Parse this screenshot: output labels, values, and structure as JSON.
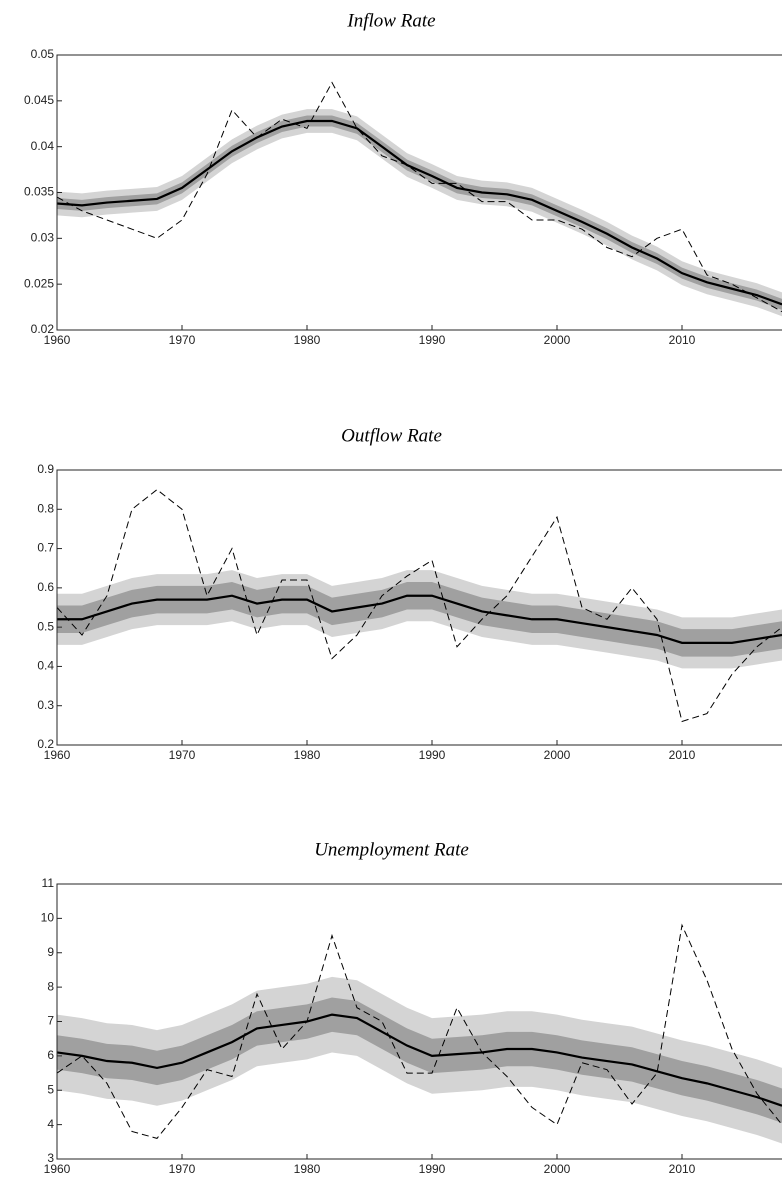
{
  "chart_data": [
    {
      "type": "line",
      "title": "Inflow Rate",
      "x": [
        1960,
        1962,
        1964,
        1966,
        1968,
        1970,
        1972,
        1974,
        1976,
        1978,
        1980,
        1982,
        1984,
        1986,
        1988,
        1990,
        1992,
        1994,
        1996,
        1998,
        2000,
        2002,
        2004,
        2006,
        2008,
        2010,
        2012,
        2014,
        2016,
        2018
      ],
      "bands": [
        {
          "color": "#d4d4d4",
          "lower": [
            0.0325,
            0.0323,
            0.0326,
            0.0328,
            0.033,
            0.0342,
            0.0362,
            0.0382,
            0.0397,
            0.0409,
            0.0415,
            0.0415,
            0.0407,
            0.0387,
            0.0367,
            0.0355,
            0.0342,
            0.0337,
            0.0335,
            0.0329,
            0.0317,
            0.0305,
            0.0292,
            0.0277,
            0.0265,
            0.0249,
            0.0239,
            0.0232,
            0.0225,
            0.0215
          ],
          "upper": [
            0.0351,
            0.0349,
            0.0352,
            0.0354,
            0.0356,
            0.0368,
            0.0388,
            0.0408,
            0.0423,
            0.0435,
            0.0441,
            0.0441,
            0.0433,
            0.0413,
            0.0393,
            0.0381,
            0.0368,
            0.0363,
            0.0361,
            0.0355,
            0.0343,
            0.0331,
            0.0318,
            0.0303,
            0.0291,
            0.0275,
            0.0265,
            0.0258,
            0.0251,
            0.0241
          ]
        },
        {
          "color": "#a0a0a0",
          "lower": [
            0.0332,
            0.033,
            0.0333,
            0.0335,
            0.0337,
            0.0349,
            0.0369,
            0.0389,
            0.0404,
            0.0416,
            0.0422,
            0.0422,
            0.0414,
            0.0394,
            0.0374,
            0.0362,
            0.0349,
            0.0344,
            0.0342,
            0.0336,
            0.0324,
            0.0312,
            0.0299,
            0.0284,
            0.0272,
            0.0256,
            0.0246,
            0.0239,
            0.0232,
            0.0222
          ],
          "upper": [
            0.0344,
            0.0342,
            0.0345,
            0.0347,
            0.0349,
            0.0361,
            0.0381,
            0.0401,
            0.0416,
            0.0428,
            0.0434,
            0.0434,
            0.0426,
            0.0406,
            0.0386,
            0.0374,
            0.0361,
            0.0356,
            0.0354,
            0.0348,
            0.0336,
            0.0324,
            0.0311,
            0.0296,
            0.0284,
            0.0268,
            0.0258,
            0.0251,
            0.0244,
            0.0234
          ]
        }
      ],
      "series": [
        {
          "color": "#000000",
          "style": "solid",
          "values": [
            0.0338,
            0.0336,
            0.0339,
            0.0341,
            0.0343,
            0.0355,
            0.0375,
            0.0395,
            0.041,
            0.0422,
            0.0428,
            0.0428,
            0.042,
            0.04,
            0.038,
            0.0368,
            0.0355,
            0.035,
            0.0348,
            0.0342,
            0.033,
            0.0318,
            0.0305,
            0.029,
            0.0278,
            0.0262,
            0.0252,
            0.0245,
            0.0238,
            0.0228
          ]
        },
        {
          "color": "#000000",
          "style": "dashed",
          "values": [
            0.0345,
            0.033,
            0.032,
            0.031,
            0.03,
            0.032,
            0.037,
            0.044,
            0.041,
            0.043,
            0.042,
            0.047,
            0.042,
            0.039,
            0.038,
            0.036,
            0.036,
            0.034,
            0.034,
            0.032,
            0.032,
            0.031,
            0.029,
            0.028,
            0.03,
            0.031,
            0.026,
            0.025,
            0.0235,
            0.022
          ]
        }
      ],
      "xlim": [
        1960,
        2018
      ],
      "xticks": [
        1960,
        1970,
        1980,
        1990,
        2000,
        2010
      ],
      "ylim": [
        0.02,
        0.05
      ],
      "yticks": [
        0.02,
        0.025,
        0.03,
        0.035,
        0.04,
        0.045,
        0.05
      ]
    },
    {
      "type": "line",
      "title": "Outflow Rate",
      "x": [
        1960,
        1962,
        1964,
        1966,
        1968,
        1970,
        1972,
        1974,
        1976,
        1978,
        1980,
        1982,
        1984,
        1986,
        1988,
        1990,
        1992,
        1994,
        1996,
        1998,
        2000,
        2002,
        2004,
        2006,
        2008,
        2010,
        2012,
        2014,
        2016,
        2018
      ],
      "bands": [
        {
          "color": "#d4d4d4",
          "lower": [
            0.455,
            0.455,
            0.475,
            0.495,
            0.505,
            0.505,
            0.505,
            0.515,
            0.495,
            0.505,
            0.505,
            0.475,
            0.485,
            0.495,
            0.515,
            0.515,
            0.495,
            0.475,
            0.465,
            0.455,
            0.455,
            0.445,
            0.435,
            0.425,
            0.415,
            0.395,
            0.395,
            0.395,
            0.405,
            0.415
          ],
          "upper": [
            0.585,
            0.585,
            0.605,
            0.625,
            0.635,
            0.635,
            0.635,
            0.645,
            0.625,
            0.635,
            0.635,
            0.605,
            0.615,
            0.625,
            0.645,
            0.645,
            0.625,
            0.605,
            0.595,
            0.585,
            0.585,
            0.575,
            0.565,
            0.555,
            0.545,
            0.525,
            0.525,
            0.525,
            0.535,
            0.545
          ]
        },
        {
          "color": "#a0a0a0",
          "lower": [
            0.485,
            0.485,
            0.505,
            0.525,
            0.535,
            0.535,
            0.535,
            0.545,
            0.525,
            0.535,
            0.535,
            0.505,
            0.515,
            0.525,
            0.545,
            0.545,
            0.525,
            0.505,
            0.495,
            0.485,
            0.485,
            0.475,
            0.465,
            0.455,
            0.445,
            0.425,
            0.425,
            0.425,
            0.435,
            0.445
          ],
          "upper": [
            0.555,
            0.555,
            0.575,
            0.595,
            0.605,
            0.605,
            0.605,
            0.615,
            0.595,
            0.605,
            0.605,
            0.575,
            0.585,
            0.595,
            0.615,
            0.615,
            0.595,
            0.575,
            0.565,
            0.555,
            0.555,
            0.545,
            0.535,
            0.525,
            0.515,
            0.495,
            0.495,
            0.495,
            0.505,
            0.515
          ]
        }
      ],
      "series": [
        {
          "color": "#000000",
          "style": "solid",
          "values": [
            0.52,
            0.52,
            0.54,
            0.56,
            0.57,
            0.57,
            0.57,
            0.58,
            0.56,
            0.57,
            0.57,
            0.54,
            0.55,
            0.56,
            0.58,
            0.58,
            0.56,
            0.54,
            0.53,
            0.52,
            0.52,
            0.51,
            0.5,
            0.49,
            0.48,
            0.46,
            0.46,
            0.46,
            0.47,
            0.48
          ]
        },
        {
          "color": "#000000",
          "style": "dashed",
          "values": [
            0.55,
            0.48,
            0.58,
            0.8,
            0.85,
            0.8,
            0.58,
            0.7,
            0.48,
            0.62,
            0.62,
            0.42,
            0.48,
            0.58,
            0.63,
            0.67,
            0.45,
            0.52,
            0.58,
            0.68,
            0.78,
            0.55,
            0.52,
            0.6,
            0.52,
            0.26,
            0.28,
            0.38,
            0.45,
            0.5
          ]
        }
      ],
      "xlim": [
        1960,
        2018
      ],
      "xticks": [
        1960,
        1970,
        1980,
        1990,
        2000,
        2010
      ],
      "ylim": [
        0.2,
        0.9
      ],
      "yticks": [
        0.2,
        0.3,
        0.4,
        0.5,
        0.6,
        0.7,
        0.8,
        0.9
      ]
    },
    {
      "type": "line",
      "title": "Unemployment Rate",
      "x": [
        1960,
        1962,
        1964,
        1966,
        1968,
        1970,
        1972,
        1974,
        1976,
        1978,
        1980,
        1982,
        1984,
        1986,
        1988,
        1990,
        1992,
        1994,
        1996,
        1998,
        2000,
        2002,
        2004,
        2006,
        2008,
        2010,
        2012,
        2014,
        2016,
        2018
      ],
      "bands": [
        {
          "color": "#d4d4d4",
          "lower": [
            5.0,
            4.9,
            4.75,
            4.7,
            4.55,
            4.7,
            5.0,
            5.3,
            5.7,
            5.8,
            5.9,
            6.1,
            6.0,
            5.6,
            5.2,
            4.9,
            4.95,
            5.0,
            5.1,
            5.1,
            5.0,
            4.85,
            4.75,
            4.65,
            4.45,
            4.25,
            4.1,
            3.9,
            3.7,
            3.45
          ],
          "upper": [
            7.2,
            7.1,
            6.95,
            6.9,
            6.75,
            6.9,
            7.2,
            7.5,
            7.9,
            8.0,
            8.1,
            8.3,
            8.2,
            7.8,
            7.4,
            7.1,
            7.15,
            7.2,
            7.3,
            7.3,
            7.2,
            7.05,
            6.95,
            6.85,
            6.65,
            6.45,
            6.3,
            6.1,
            5.9,
            5.65
          ]
        },
        {
          "color": "#a0a0a0",
          "lower": [
            5.6,
            5.5,
            5.35,
            5.3,
            5.15,
            5.3,
            5.6,
            5.9,
            6.3,
            6.4,
            6.5,
            6.7,
            6.6,
            6.2,
            5.8,
            5.5,
            5.55,
            5.6,
            5.7,
            5.7,
            5.6,
            5.45,
            5.35,
            5.25,
            5.05,
            4.85,
            4.7,
            4.5,
            4.3,
            4.05
          ],
          "upper": [
            6.6,
            6.5,
            6.35,
            6.3,
            6.15,
            6.3,
            6.6,
            6.9,
            7.3,
            7.4,
            7.5,
            7.7,
            7.6,
            7.2,
            6.8,
            6.5,
            6.55,
            6.6,
            6.7,
            6.7,
            6.6,
            6.45,
            6.35,
            6.25,
            6.05,
            5.85,
            5.7,
            5.5,
            5.3,
            5.05
          ]
        }
      ],
      "series": [
        {
          "color": "#000000",
          "style": "solid",
          "values": [
            6.1,
            6.0,
            5.85,
            5.8,
            5.65,
            5.8,
            6.1,
            6.4,
            6.8,
            6.9,
            7.0,
            7.2,
            7.1,
            6.7,
            6.3,
            6.0,
            6.05,
            6.1,
            6.2,
            6.2,
            6.1,
            5.95,
            5.85,
            5.75,
            5.55,
            5.35,
            5.2,
            5.0,
            4.8,
            4.55
          ]
        },
        {
          "color": "#000000",
          "style": "dashed",
          "values": [
            5.5,
            6.0,
            5.2,
            3.8,
            3.6,
            4.5,
            5.6,
            5.4,
            7.8,
            6.2,
            7.0,
            9.5,
            7.4,
            7.0,
            5.5,
            5.5,
            7.4,
            6.1,
            5.4,
            4.5,
            4.0,
            5.8,
            5.6,
            4.6,
            5.5,
            9.8,
            8.2,
            6.2,
            4.9,
            4.0
          ]
        }
      ],
      "xlim": [
        1960,
        2018
      ],
      "xticks": [
        1960,
        1970,
        1980,
        1990,
        2000,
        2010
      ],
      "ylim": [
        3,
        11
      ],
      "yticks": [
        3,
        4,
        5,
        6,
        7,
        8,
        9,
        10,
        11
      ]
    }
  ]
}
